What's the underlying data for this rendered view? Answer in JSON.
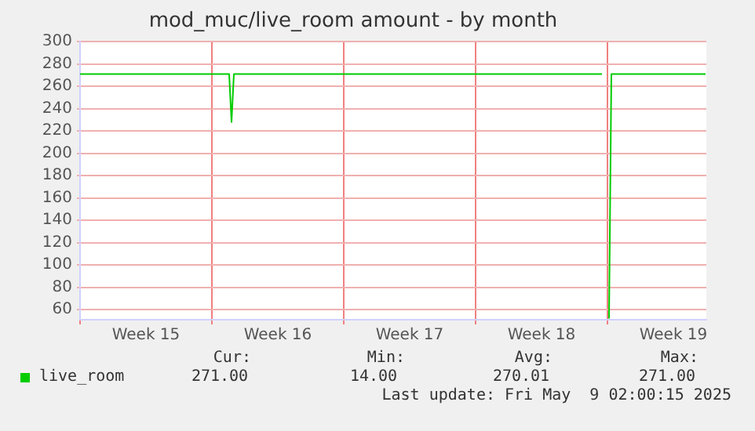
{
  "chart_data": {
    "type": "line",
    "title": "mod_muc/live_room amount - by month",
    "x": [
      "2025-04-07T00:00",
      "2025-04-14T22:00",
      "2025-04-15T01:00",
      "2025-04-15T04:00",
      "2025-05-04T17:00",
      "2025-05-04T19:00",
      "2025-05-05T02:00",
      "2025-05-05T05:00",
      "2025-05-10T05:00"
    ],
    "series": [
      {
        "name": "live_room",
        "color": "#00cc00",
        "values": [
          271,
          271,
          228,
          271,
          271,
          null,
          52,
          271,
          271
        ]
      }
    ],
    "xlim": [
      "2025-04-07T00:00",
      "2025-05-10T06:00"
    ],
    "xticks": [
      {
        "value": "2025-04-07T00:00",
        "label": null
      },
      {
        "value": "2025-04-10T12:00",
        "label": "Week 15"
      },
      {
        "value": "2025-04-14T00:00",
        "label": null
      },
      {
        "value": "2025-04-17T12:00",
        "label": "Week 16"
      },
      {
        "value": "2025-04-21T00:00",
        "label": null
      },
      {
        "value": "2025-04-24T12:00",
        "label": "Week 17"
      },
      {
        "value": "2025-04-28T00:00",
        "label": null
      },
      {
        "value": "2025-05-01T12:00",
        "label": "Week 18"
      },
      {
        "value": "2025-05-05T00:00",
        "label": null
      },
      {
        "value": "2025-05-08T12:00",
        "label": "Week 19"
      }
    ],
    "ylim": [
      51,
      300
    ],
    "yticks": [
      60,
      80,
      100,
      120,
      140,
      160,
      180,
      200,
      220,
      240,
      260,
      280,
      300
    ],
    "grid": true,
    "legend": "bottom",
    "marker": "none",
    "line_style": "solid",
    "annotations": [
      "Cur:",
      "271.00",
      "Min:",
      "14.00",
      "Avg:",
      "270.01",
      "Max:",
      "271.00",
      "Last update: Fri May  9 02:00:15 2025"
    ]
  }
}
